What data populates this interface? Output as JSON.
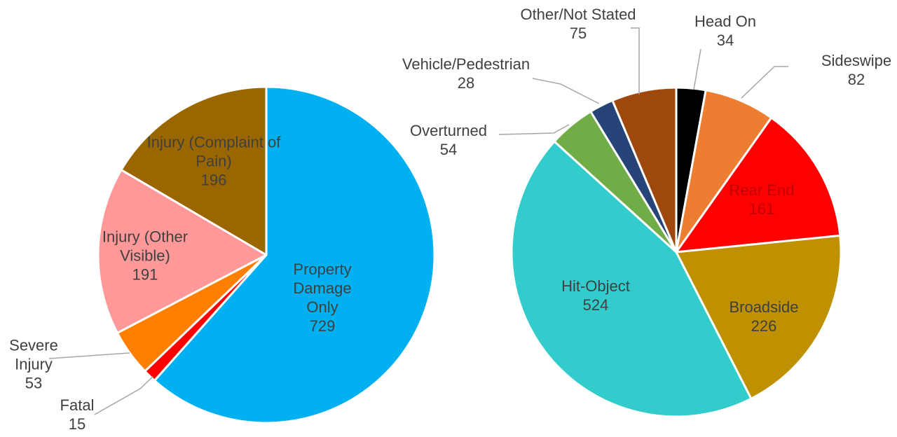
{
  "chart_data": [
    {
      "type": "pie",
      "categories": [
        "Property Damage Only",
        "Fatal",
        "Severe Injury",
        "Injury (Other Visible)",
        "Injury (Complaint of Pain)"
      ],
      "values": [
        729,
        15,
        53,
        191,
        196
      ],
      "colors": [
        "#00b0f0",
        "#ff0000",
        "#ff8000",
        "#ff9999",
        "#996600"
      ]
    },
    {
      "type": "pie",
      "categories": [
        "Head On",
        "Sideswipe",
        "Rear End",
        "Broadside",
        "Hit-Object",
        "Overturned",
        "Vehicle/Pedestrian",
        "Other/Not Stated"
      ],
      "values": [
        34,
        82,
        161,
        226,
        524,
        54,
        28,
        75
      ],
      "colors": [
        "#000000",
        "#ed7d31",
        "#ff0000",
        "#bf9000",
        "#33cccc",
        "#70ad47",
        "#264478",
        "#9e480e"
      ]
    }
  ]
}
